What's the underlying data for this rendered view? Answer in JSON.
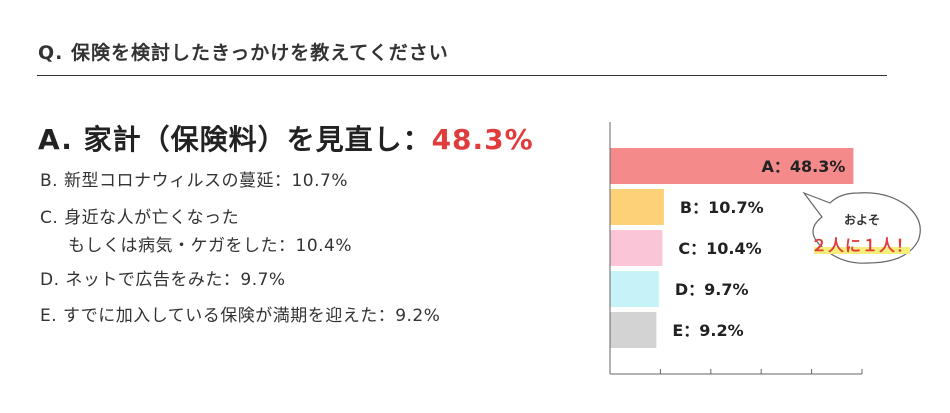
{
  "question": "Q. 保険を検討したきっかけを教えてください",
  "answer": {
    "prefix": "A. 家計（保険料）を見直し：",
    "percent": "48.3%"
  },
  "options": [
    "B. 新型コロナウィルスの蔓延：10.7%",
    "C. 身近な人が亡くなった",
    "もしくは病気・ケガをした：10.4%",
    "D. ネットで広告をみた：9.7%",
    "E. すでに加入している保険が満期を迎えた：9.2%"
  ],
  "callout": {
    "small": "およそ",
    "big": "２人に１人！"
  },
  "chart_data": {
    "type": "bar",
    "orientation": "horizontal",
    "categories": [
      "A",
      "B",
      "C",
      "D",
      "E"
    ],
    "values": [
      48.3,
      10.7,
      10.4,
      9.7,
      9.2
    ],
    "labels": [
      "A：48.3%",
      "B：10.7%",
      "C：10.4%",
      "D：9.7%",
      "E：9.2%"
    ],
    "colors": [
      "#f48a89",
      "#fdd177",
      "#fbc5d8",
      "#c5f3f8",
      "#d3d3d3"
    ],
    "xlim": [
      0,
      50
    ],
    "x_ticks": [
      0,
      10,
      20,
      30,
      40,
      50
    ],
    "axis_color": "#666666",
    "title": "",
    "xlabel": "",
    "ylabel": ""
  }
}
